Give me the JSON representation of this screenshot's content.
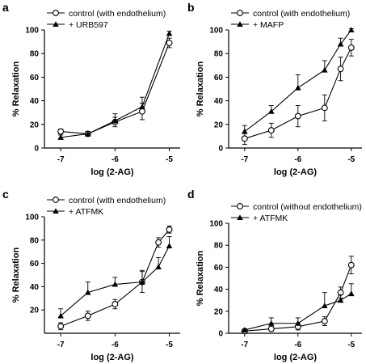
{
  "chart_data": [
    {
      "panel": "a",
      "type": "line",
      "xlabel": "log (2-AG)",
      "ylabel": "% Relaxation",
      "xlim": [
        -7.3,
        -4.8
      ],
      "ylim": [
        0,
        100
      ],
      "xticks": [
        -7,
        -6,
        -5
      ],
      "yticks": [
        0,
        20,
        40,
        60,
        80,
        100
      ],
      "legend_position": "top-left",
      "series": [
        {
          "name": "control (with endothelium)",
          "marker": "open-circle",
          "x": [
            -7,
            -6.5,
            -6,
            -5.5,
            -5
          ],
          "y": [
            14,
            12,
            22,
            31,
            89
          ],
          "err": [
            2,
            2,
            4,
            7,
            4
          ]
        },
        {
          "name": "+ URB597",
          "marker": "filled-triangle",
          "x": [
            -7,
            -6.5,
            -6,
            -5.5,
            -5
          ],
          "y": [
            9,
            12,
            23,
            35,
            97
          ],
          "err": [
            2,
            2,
            6,
            8,
            2
          ]
        }
      ]
    },
    {
      "panel": "b",
      "type": "line",
      "xlabel": "log (2-AG)",
      "ylabel": "% Relaxation",
      "xlim": [
        -7.3,
        -4.8
      ],
      "ylim": [
        0,
        100
      ],
      "xticks": [
        -7,
        -6,
        -5
      ],
      "yticks": [
        0,
        20,
        40,
        60,
        80,
        100
      ],
      "legend_position": "top-left",
      "series": [
        {
          "name": "control (with endothelium)",
          "marker": "open-circle",
          "x": [
            -7,
            -6.5,
            -6,
            -5.5,
            -5.2,
            -5
          ],
          "y": [
            8,
            15,
            27,
            34,
            67,
            85
          ],
          "err": [
            5,
            6,
            9,
            11,
            10,
            7
          ]
        },
        {
          "name": "+ MAFP",
          "marker": "filled-triangle",
          "x": [
            -7,
            -6.5,
            -6,
            -5.5,
            -5.2,
            -5
          ],
          "y": [
            14,
            31,
            51,
            66,
            88,
            100
          ],
          "err": [
            5,
            5,
            11,
            8,
            5,
            1
          ]
        }
      ]
    },
    {
      "panel": "c",
      "type": "line",
      "xlabel": "log (2-AG)",
      "ylabel": "% Relaxation",
      "xlim": [
        -7.3,
        -4.8
      ],
      "ylim": [
        0,
        100
      ],
      "xticks": [
        -7,
        -6,
        -5
      ],
      "yticks": [
        20,
        40,
        60,
        80,
        100
      ],
      "legend_position": "top-left",
      "series": [
        {
          "name": "control (with endothelium)",
          "marker": "open-circle",
          "x": [
            -7,
            -6.5,
            -6,
            -5.5,
            -5.2,
            -5
          ],
          "y": [
            6,
            15,
            25,
            44,
            78,
            89
          ],
          "err": [
            3,
            4,
            4,
            9,
            4,
            3
          ]
        },
        {
          "name": "+ ATFMK",
          "marker": "filled-triangle",
          "x": [
            -7,
            -6.5,
            -6,
            -5.5,
            -5.2,
            -5
          ],
          "y": [
            15,
            35,
            42,
            44,
            57,
            75
          ],
          "err": [
            6,
            9,
            6,
            10,
            8,
            8
          ]
        }
      ]
    },
    {
      "panel": "d",
      "type": "line",
      "xlabel": "log (2-AG)",
      "ylabel": "% Relaxation",
      "xlim": [
        -7.3,
        -4.8
      ],
      "ylim": [
        0,
        100
      ],
      "xticks": [
        -7,
        -6,
        -5
      ],
      "yticks": [
        0,
        20,
        40,
        60,
        80,
        100
      ],
      "legend_position": "top-left",
      "series": [
        {
          "name": "control (without endothelium)",
          "marker": "open-circle",
          "x": [
            -7,
            -6.5,
            -6,
            -5.5,
            -5.2,
            -5
          ],
          "y": [
            2,
            4,
            6,
            11,
            37,
            62
          ],
          "err": [
            1,
            2,
            3,
            4,
            5,
            8
          ]
        },
        {
          "name": "+ ATFMK",
          "marker": "filled-triangle",
          "x": [
            -7,
            -6.5,
            -6,
            -5.5,
            -5.2,
            -5
          ],
          "y": [
            3,
            9,
            9,
            25,
            30,
            36
          ],
          "err": [
            1,
            5,
            5,
            12,
            5,
            9
          ]
        }
      ]
    }
  ]
}
